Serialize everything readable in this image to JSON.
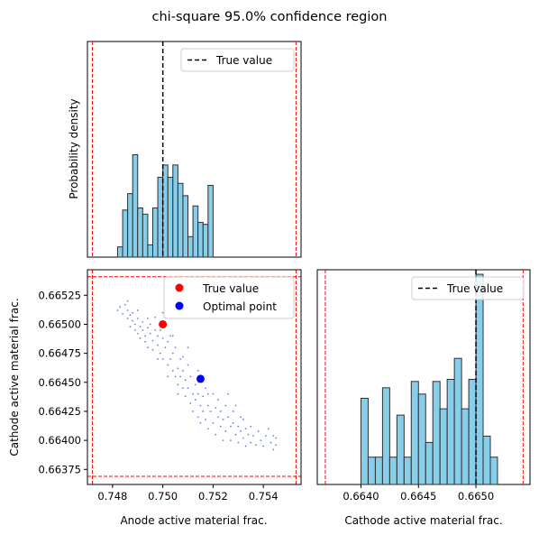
{
  "figure": {
    "title": "chi-square 95.0% confidence region"
  },
  "chart_data": [
    {
      "type": "histogram",
      "panel": "top-left",
      "ylabel": "Probability density",
      "xlim": [
        0.747,
        0.7555
      ],
      "bins": {
        "start": 0.7482,
        "width": 0.0002,
        "heights": [
          0.05,
          0.23,
          0.31,
          0.5,
          0.24,
          0.21,
          0.06,
          0.24,
          0.39,
          0.45,
          0.39,
          0.45,
          0.36,
          0.3,
          0.1,
          0.25,
          0.17,
          0.16,
          0.35
        ]
      },
      "ylim": [
        0,
        1
      ],
      "true_value": 0.75,
      "bounds": [
        0.7472,
        0.7553
      ],
      "legend": [
        "True value"
      ],
      "legend_position": "upper right",
      "y_ticks_visible": false,
      "x_ticks_visible": false
    },
    {
      "type": "scatter",
      "panel": "bottom-left",
      "xlabel": "Anode active material frac.",
      "ylabel": "Cathode active material frac.",
      "xlim": [
        0.747,
        0.7555
      ],
      "ylim": [
        0.66362,
        0.66547
      ],
      "xticks": [
        "0.748",
        "0.750",
        "0.752",
        "0.754"
      ],
      "xtick_values": [
        0.748,
        0.75,
        0.752,
        0.754
      ],
      "yticks": [
        "0.66375",
        "0.66400",
        "0.66425",
        "0.66450",
        "0.66475",
        "0.66500",
        "0.66525"
      ],
      "ytick_values": [
        0.66375,
        0.664,
        0.66425,
        0.6645,
        0.66475,
        0.665,
        0.66525
      ],
      "true_point": {
        "x": 0.75,
        "y": 0.665
      },
      "optimal_point": {
        "x": 0.7515,
        "y": 0.66453
      },
      "bounds_x": [
        0.7472,
        0.7553
      ],
      "bounds_y": [
        0.66369,
        0.66541
      ],
      "legend": [
        "True value",
        "Optimal point"
      ],
      "legend_position": "upper right",
      "sample_points": [
        [
          0.7482,
          0.66512
        ],
        [
          0.7483,
          0.66515
        ],
        [
          0.7484,
          0.66509
        ],
        [
          0.7485,
          0.66517
        ],
        [
          0.7486,
          0.66505
        ],
        [
          0.7486,
          0.66512
        ],
        [
          0.7487,
          0.66498
        ],
        [
          0.7487,
          0.66508
        ],
        [
          0.7488,
          0.66503
        ],
        [
          0.7488,
          0.6651
        ],
        [
          0.7489,
          0.66495
        ],
        [
          0.7489,
          0.665
        ],
        [
          0.749,
          0.66492
        ],
        [
          0.749,
          0.66505
        ],
        [
          0.7491,
          0.66498
        ],
        [
          0.7491,
          0.66488
        ],
        [
          0.7492,
          0.66495
        ],
        [
          0.7492,
          0.66502
        ],
        [
          0.7493,
          0.6649
        ],
        [
          0.7493,
          0.66485
        ],
        [
          0.7494,
          0.66497
        ],
        [
          0.7494,
          0.6648
        ],
        [
          0.7495,
          0.66492
        ],
        [
          0.7495,
          0.665
        ],
        [
          0.7496,
          0.66486
        ],
        [
          0.7496,
          0.66478
        ],
        [
          0.7497,
          0.66495
        ],
        [
          0.7497,
          0.66506
        ],
        [
          0.7498,
          0.66482
        ],
        [
          0.7498,
          0.6649
        ],
        [
          0.7499,
          0.66475
        ],
        [
          0.7499,
          0.66495
        ],
        [
          0.75,
          0.66488
        ],
        [
          0.75,
          0.6647
        ],
        [
          0.7501,
          0.66498
        ],
        [
          0.7501,
          0.6648
        ],
        [
          0.7502,
          0.66465
        ],
        [
          0.7502,
          0.66485
        ],
        [
          0.7503,
          0.6647
        ],
        [
          0.7503,
          0.6649
        ],
        [
          0.7504,
          0.6646
        ],
        [
          0.7504,
          0.66475
        ],
        [
          0.7505,
          0.66455
        ],
        [
          0.7505,
          0.6648
        ],
        [
          0.7506,
          0.66462
        ],
        [
          0.7506,
          0.66448
        ],
        [
          0.7507,
          0.6647
        ],
        [
          0.7507,
          0.66455
        ],
        [
          0.7508,
          0.66445
        ],
        [
          0.7508,
          0.6646
        ],
        [
          0.7509,
          0.66438
        ],
        [
          0.7509,
          0.66452
        ],
        [
          0.751,
          0.66465
        ],
        [
          0.751,
          0.66445
        ],
        [
          0.7511,
          0.66432
        ],
        [
          0.7511,
          0.66455
        ],
        [
          0.7512,
          0.6644
        ],
        [
          0.7512,
          0.66425
        ],
        [
          0.7513,
          0.66448
        ],
        [
          0.7513,
          0.66435
        ],
        [
          0.7514,
          0.6642
        ],
        [
          0.7514,
          0.6644
        ],
        [
          0.7515,
          0.6643
        ],
        [
          0.7515,
          0.66415
        ],
        [
          0.7516,
          0.66438
        ],
        [
          0.7516,
          0.66425
        ],
        [
          0.7517,
          0.66445
        ],
        [
          0.7517,
          0.66418
        ],
        [
          0.7518,
          0.6643
        ],
        [
          0.7518,
          0.6641
        ],
        [
          0.7519,
          0.66425
        ],
        [
          0.752,
          0.6644
        ],
        [
          0.752,
          0.66415
        ],
        [
          0.7521,
          0.66428
        ],
        [
          0.7521,
          0.66405
        ],
        [
          0.7522,
          0.6642
        ],
        [
          0.7522,
          0.66435
        ],
        [
          0.7523,
          0.66412
        ],
        [
          0.7523,
          0.66425
        ],
        [
          0.7524,
          0.664
        ],
        [
          0.7524,
          0.66418
        ],
        [
          0.7525,
          0.6643
        ],
        [
          0.7525,
          0.66408
        ],
        [
          0.7526,
          0.6642
        ],
        [
          0.7526,
          0.6644
        ],
        [
          0.7527,
          0.66412
        ],
        [
          0.7527,
          0.664
        ],
        [
          0.7528,
          0.66425
        ],
        [
          0.7528,
          0.66415
        ],
        [
          0.7529,
          0.66405
        ],
        [
          0.7529,
          0.6643
        ],
        [
          0.753,
          0.66412
        ],
        [
          0.753,
          0.66398
        ],
        [
          0.7531,
          0.6642
        ],
        [
          0.7531,
          0.66408
        ],
        [
          0.7532,
          0.66402
        ],
        [
          0.7532,
          0.66418
        ],
        [
          0.7533,
          0.6641
        ],
        [
          0.7533,
          0.66395
        ],
        [
          0.7534,
          0.66405
        ],
        [
          0.7535,
          0.66412
        ],
        [
          0.7535,
          0.66398
        ],
        [
          0.7536,
          0.66404
        ],
        [
          0.7537,
          0.66396
        ],
        [
          0.7538,
          0.66408
        ],
        [
          0.7539,
          0.664
        ],
        [
          0.754,
          0.66395
        ],
        [
          0.7541,
          0.66404
        ],
        [
          0.7542,
          0.6641
        ],
        [
          0.7543,
          0.66398
        ],
        [
          0.7544,
          0.66404
        ],
        [
          0.7544,
          0.66392
        ],
        [
          0.7545,
          0.66402
        ],
        [
          0.7545,
          0.66396
        ],
        [
          0.7498,
          0.6647
        ],
        [
          0.7502,
          0.66455
        ],
        [
          0.7506,
          0.6644
        ],
        [
          0.751,
          0.6648
        ],
        [
          0.7514,
          0.6646
        ],
        [
          0.7518,
          0.6644
        ],
        [
          0.7494,
          0.66505
        ],
        [
          0.749,
          0.66512
        ],
        [
          0.7486,
          0.6652
        ],
        [
          0.75,
          0.6651
        ],
        [
          0.7504,
          0.6649
        ],
        [
          0.7508,
          0.66472
        ]
      ]
    },
    {
      "type": "histogram",
      "panel": "bottom-right",
      "xlabel": "Cathode active material frac.",
      "xlim": [
        0.66362,
        0.66547
      ],
      "xticks": [
        "0.6640",
        "0.6645",
        "0.6650"
      ],
      "xtick_values": [
        0.664,
        0.6645,
        0.665
      ],
      "bins": {
        "start": 0.664,
        "width": 6.25e-05,
        "heights": [
          0.41,
          0.13,
          0.13,
          0.46,
          0.13,
          0.33,
          0.13,
          0.49,
          0.43,
          0.2,
          0.49,
          0.36,
          0.5,
          0.6,
          0.36,
          0.5,
          1.0,
          0.23,
          0.13
        ]
      },
      "ylim": [
        0,
        1
      ],
      "true_value": 0.665,
      "bounds": [
        0.66369,
        0.66541
      ],
      "legend": [
        "True value"
      ],
      "legend_position": "upper right",
      "y_ticks_visible": false
    }
  ],
  "colors": {
    "bar_fill": "#87ceeb",
    "bar_edge": "#2f2f2f",
    "true_line": "#000000",
    "bound_line": "#ff0000",
    "true_point": "#ff0000",
    "optimal_point": "#0000ff",
    "samples": "#1f4fd1"
  }
}
